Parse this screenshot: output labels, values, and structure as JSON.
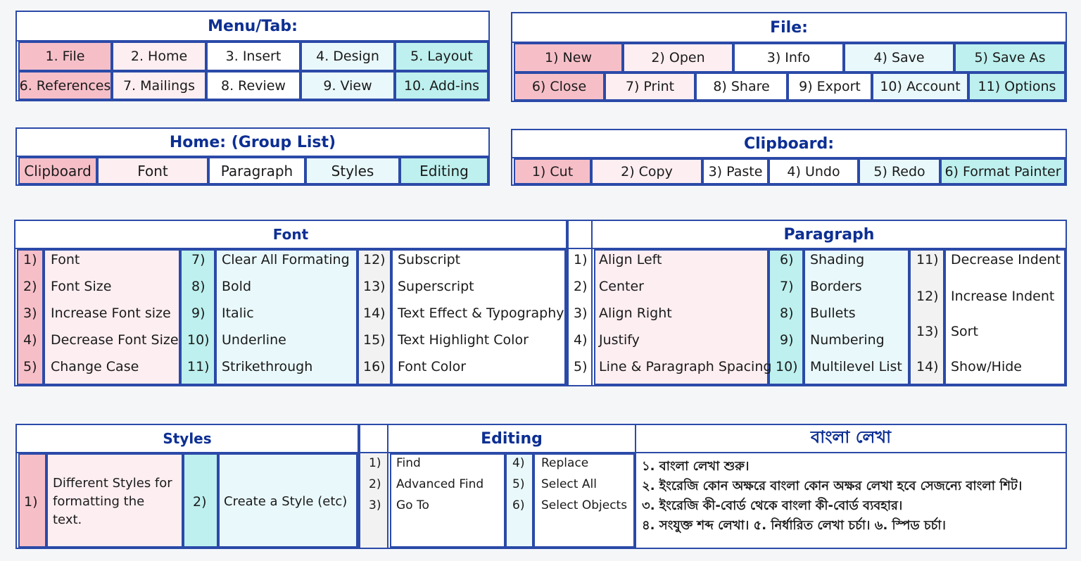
{
  "menu": {
    "title": "Menu/Tab:",
    "row1": [
      "1. File",
      "2. Home",
      "3. Insert",
      "4. Design",
      "5. Layout"
    ],
    "row2": [
      "6. References",
      "7. Mailings",
      "8. Review",
      "9. View",
      "10. Add-ins"
    ]
  },
  "file": {
    "title": "File:",
    "row1": [
      "1) New",
      "2) Open",
      "3) Info",
      "4) Save",
      "5) Save As"
    ],
    "row2": [
      "6) Close",
      "7) Print",
      "8) Share",
      "9) Export",
      "10) Account",
      "11) Options"
    ]
  },
  "home": {
    "title": "Home: (Group List)",
    "items": [
      "Clipboard",
      "Font",
      "Paragraph",
      "Styles",
      "Editing"
    ]
  },
  "clipboard": {
    "title": "Clipboard:",
    "items": [
      "1) Cut",
      "2) Copy",
      "3) Paste",
      "4) Undo",
      "5) Redo",
      "6) Format Painter"
    ]
  },
  "font": {
    "title": "Font",
    "col1": {
      "nums": [
        "1)",
        "2)",
        "3)",
        "4)",
        "5)"
      ],
      "labels": [
        "Font",
        "Font Size",
        "Increase Font size",
        "Decrease Font Size",
        "Change Case"
      ]
    },
    "col2": {
      "nums": [
        "7)",
        "8)",
        "9)",
        "10)",
        "11)"
      ],
      "labels": [
        "Clear All Formating",
        "Bold",
        "Italic",
        "Underline",
        "Strikethrough"
      ]
    },
    "col3": {
      "nums": [
        "12)",
        "13)",
        "14)",
        "15)",
        "16)"
      ],
      "labels": [
        "Subscript",
        "Superscript",
        "Text Effect & Typography",
        "Text Highlight Color",
        "Font Color"
      ]
    }
  },
  "paragraph": {
    "title": "Paragraph",
    "col1": {
      "nums": [
        "1)",
        "2)",
        "3)",
        "4)",
        "5)"
      ],
      "labels": [
        "Align Left",
        "Center",
        "Align Right",
        "Justify",
        "Line & Paragraph Spacing"
      ]
    },
    "col2": {
      "nums": [
        "6)",
        "7)",
        "8)",
        "9)",
        "10)"
      ],
      "labels": [
        "Shading",
        "Borders",
        "Bullets",
        "Numbering",
        "Multilevel List"
      ]
    },
    "col3": {
      "nums": [
        "11)",
        "12)",
        "13)",
        "14)"
      ],
      "labels": [
        "Decrease Indent",
        "Increase Indent",
        "Sort",
        "Show/Hide"
      ]
    }
  },
  "styles": {
    "title": "Styles",
    "num1": "1)",
    "text1": [
      "Different Styles for",
      "formatting the",
      "text."
    ],
    "num2": "2)",
    "text2": "Create a Style  (etc)"
  },
  "editing": {
    "title": "Editing",
    "col1": {
      "nums": [
        "1)",
        "2)",
        "3)"
      ],
      "labels": [
        "Find",
        "Advanced Find",
        "Go To"
      ]
    },
    "col2": {
      "nums": [
        "4)",
        "5)",
        "6)"
      ],
      "labels": [
        "Replace",
        "Select All",
        "Select Objects"
      ]
    }
  },
  "bangla": {
    "title": "বাংলা লেখা",
    "lines": [
      "১. বাংলা লেখা শুরু।",
      "২. ইংরেজি কোন অক্ষরে বাংলা কোন অক্ষর লেখা হবে সেজন্যে বাংলা শিট।",
      "৩. ইংরেজি কী-বোর্ড থেকে বাংলা কী-বোর্ড ব্যবহার।",
      "৪. সংযুক্ত শব্দ লেখা। ৫. নির্ধারিত লেখা চর্চা। ৬. স্পিড চর্চা।"
    ]
  }
}
